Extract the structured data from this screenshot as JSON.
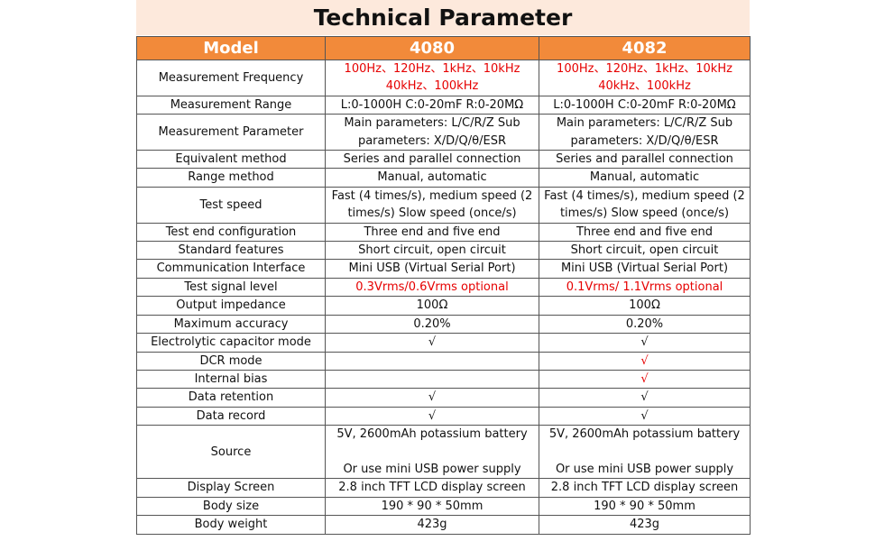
{
  "title": "Technical Parameter",
  "header": [
    "Model",
    "4080",
    "4082"
  ],
  "red_color": "#e60000",
  "rows": [
    [
      "Measurement Frequency",
      {
        "text": "100Hz、120Hz、1kHz、10kHz 40kHz、100kHz",
        "red": true
      },
      {
        "text": "100Hz、120Hz、1kHz、10kHz 40kHz、100kHz",
        "red": true
      }
    ],
    [
      "Measurement Range",
      "L:0-1000H C:0-20mF R:0-20MΩ",
      "L:0-1000H C:0-20mF R:0-20MΩ"
    ],
    [
      "Measurement  Parameter",
      "Main parameters: L/C/R/Z  Sub parameters: X/D/Q/θ/ESR",
      "Main parameters: L/C/R/Z  Sub parameters: X/D/Q/θ/ESR"
    ],
    [
      "Equivalent method",
      "Series and parallel connection",
      "Series and parallel connection"
    ],
    [
      "Range method",
      "Manual, automatic",
      "Manual, automatic"
    ],
    [
      "Test speed",
      "Fast (4 times/s), medium speed (2 times/s)  Slow speed (once/s)",
      "Fast (4 times/s), medium speed (2 times/s)  Slow speed (once/s)"
    ],
    [
      "Test end configuration",
      "Three end and five end",
      "Three end and five end"
    ],
    [
      "Standard features",
      "Short circuit, open circuit",
      "Short circuit, open circuit"
    ],
    [
      "Communication Interface",
      "Mini USB (Virtual Serial Port)",
      "Mini USB (Virtual Serial Port)"
    ],
    [
      "Test signal level",
      {
        "text": "0.3Vrms/0.6Vrms optional",
        "red": true
      },
      {
        "text": "0.1Vrms/ 1.1Vrms optional",
        "red": true
      }
    ],
    [
      "Output impedance",
      "100Ω",
      "100Ω"
    ],
    [
      "Maximum accuracy",
      "0.20%",
      "0.20%"
    ],
    [
      "Electrolytic capacitor mode",
      "√",
      "√"
    ],
    [
      "DCR mode",
      null,
      {
        "text": "√",
        "red": true
      }
    ],
    [
      "Internal bias",
      null,
      {
        "text": "√",
        "red": true
      }
    ],
    [
      "Data retention",
      "√",
      "√"
    ],
    [
      "Data record",
      "√",
      "√"
    ],
    [
      "Source",
      "5V, 2600mAh potassium battery\n\nOr use mini USB power supply",
      "5V, 2600mAh potassium battery\n\nOr use mini USB power supply"
    ],
    [
      "Display Screen",
      "2.8 inch TFT LCD display screen",
      "2.8 inch TFT LCD display screen"
    ],
    [
      "Body size",
      "190 * 90 * 50mm",
      "190 * 90 * 50mm"
    ],
    [
      "Body weight",
      "423g",
      "423g"
    ]
  ]
}
